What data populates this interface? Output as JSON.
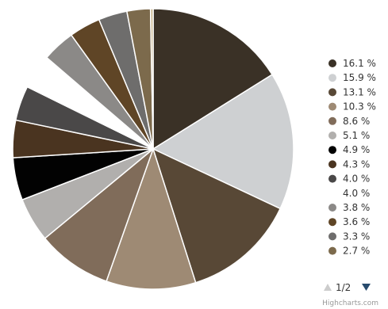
{
  "chart_data": {
    "type": "pie",
    "slices": [
      {
        "label": "16.1 %",
        "value": 16.1,
        "color": "#3a3126"
      },
      {
        "label": "15.9 %",
        "value": 15.9,
        "color": "#ced0d2"
      },
      {
        "label": "13.1 %",
        "value": 13.1,
        "color": "#584836"
      },
      {
        "label": "10.3 %",
        "value": 10.3,
        "color": "#9e8a74"
      },
      {
        "label": "8.6 %",
        "value": 8.6,
        "color": "#806c5a"
      },
      {
        "label": "5.1 %",
        "value": 5.1,
        "color": "#b1afad"
      },
      {
        "label": "4.9 %",
        "value": 4.9,
        "color": "#020202"
      },
      {
        "label": "4.3 %",
        "value": 4.3,
        "color": "#4a3420"
      },
      {
        "label": "4.0 %",
        "value": 4.0,
        "color": "#4a4848"
      },
      {
        "label": "4.0 %",
        "value": 4.0,
        "color": "#ffffff"
      },
      {
        "label": "3.8 %",
        "value": 3.8,
        "color": "#8b8987"
      },
      {
        "label": "3.6 %",
        "value": 3.6,
        "color": "#5f4526"
      },
      {
        "label": "3.3 %",
        "value": 3.3,
        "color": "#6e6d6c"
      },
      {
        "label": "2.7 %",
        "value": 2.7,
        "color": "#7c6a4c"
      },
      {
        "label": "",
        "value": 0.3,
        "color": "#c8b48a"
      }
    ],
    "legend": {
      "position": "right",
      "visible_count": 14,
      "page_indicator": "1/2"
    },
    "credit": "Highcharts.com"
  }
}
